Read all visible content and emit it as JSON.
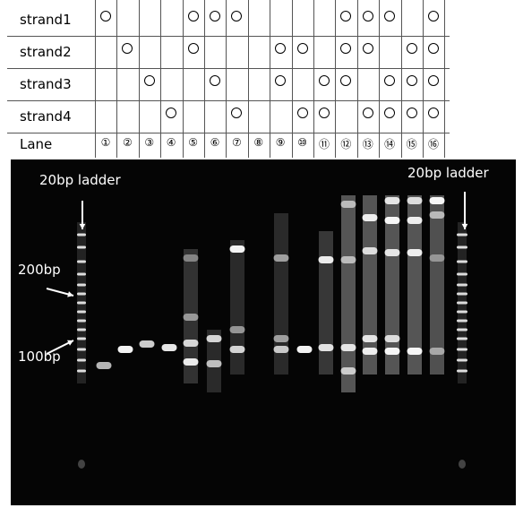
{
  "table": {
    "rows": [
      {
        "label": "strand1",
        "marks": [
          1,
          0,
          0,
          0,
          1,
          1,
          1,
          0,
          0,
          0,
          0,
          1,
          1,
          1,
          0,
          1
        ]
      },
      {
        "label": "strand2",
        "marks": [
          0,
          1,
          0,
          0,
          1,
          0,
          0,
          0,
          1,
          1,
          0,
          1,
          1,
          0,
          1,
          1
        ]
      },
      {
        "label": "strand3",
        "marks": [
          0,
          0,
          1,
          0,
          0,
          1,
          0,
          0,
          1,
          0,
          1,
          1,
          0,
          1,
          1,
          1
        ]
      },
      {
        "label": "strand4",
        "marks": [
          0,
          0,
          0,
          1,
          0,
          0,
          1,
          0,
          0,
          1,
          1,
          0,
          1,
          1,
          1,
          1
        ]
      }
    ],
    "lane_label": "Lane",
    "lane_numbers": [
      "①",
      "②",
      "③",
      "④",
      "⑤",
      "⑥",
      "⑦",
      "⑧",
      "⑨",
      "⑩",
      "⑪",
      "⑫",
      "⑬",
      "⑭",
      "⑮",
      "⑯"
    ]
  },
  "gel": {
    "ladder_left_label": "20bp ladder",
    "ladder_right_label": "20bp ladder",
    "marker_200": "200bp",
    "marker_100": "100bp"
  },
  "colors": {
    "gel_background": "#050505",
    "band": "#ffffff",
    "marker": "#000000"
  }
}
